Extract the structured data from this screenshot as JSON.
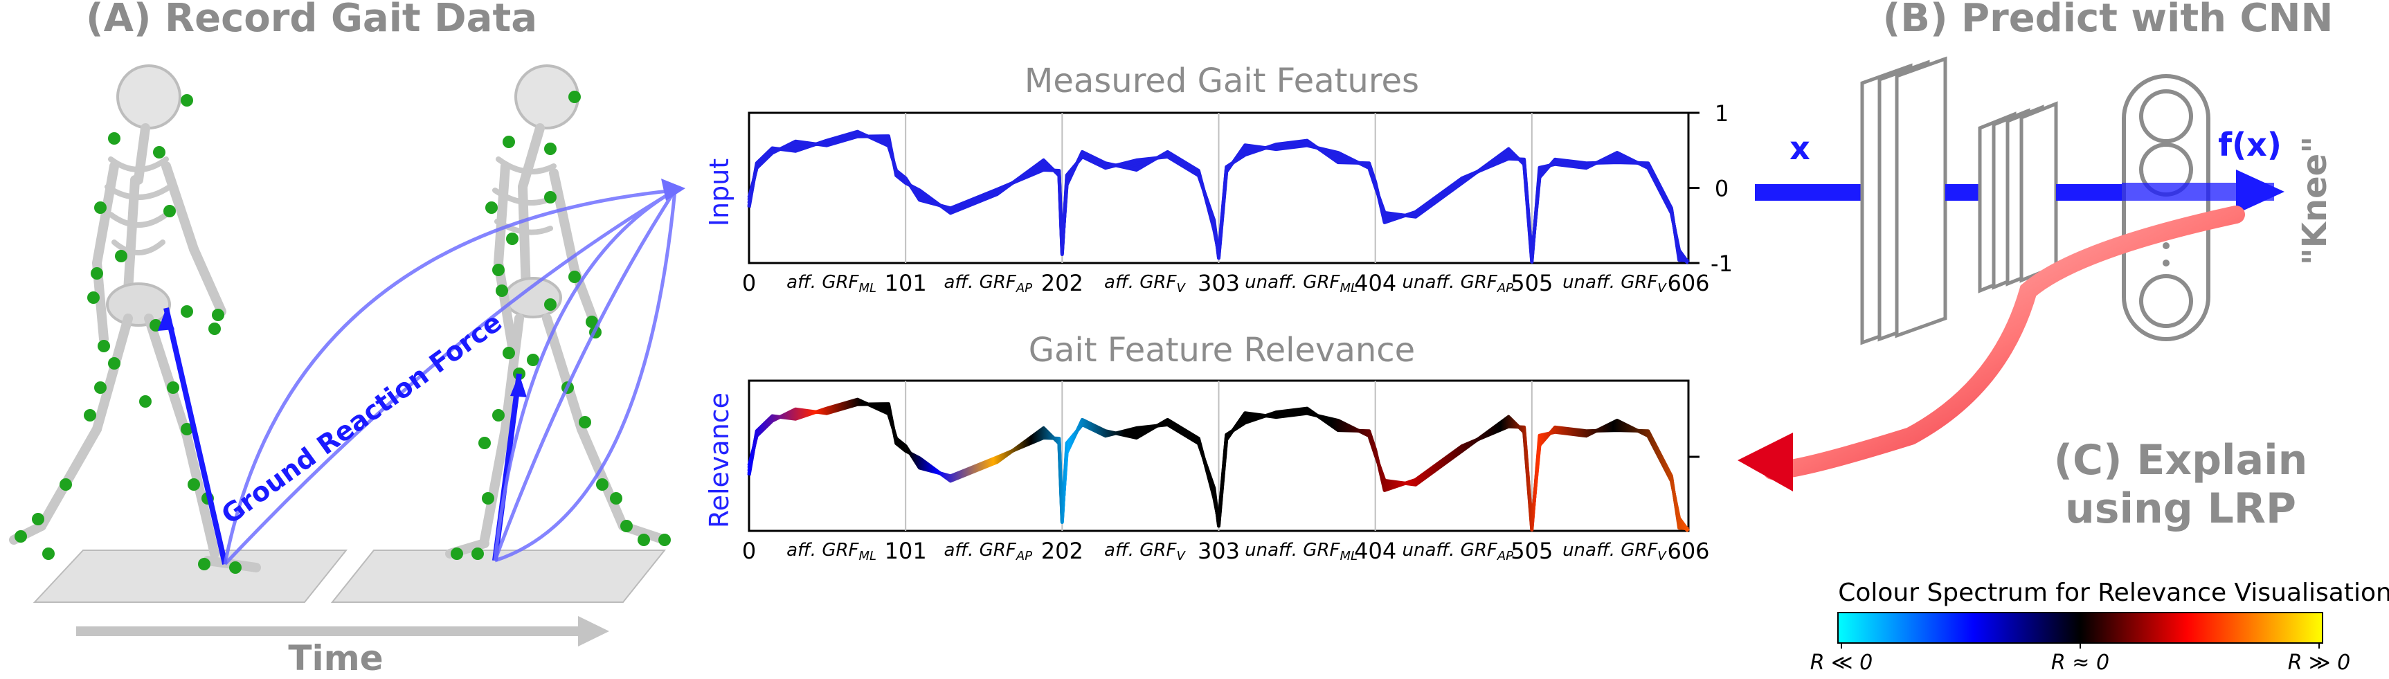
{
  "panels": {
    "a_title": "(A) Record Gait Data",
    "b_title": "(B) Predict with CNN",
    "c_title_line1": "(C) Explain",
    "c_title_line2": "using LRP",
    "time_label": "Time",
    "grf_label": "Ground Reaction Force"
  },
  "cnn": {
    "input_label": "x",
    "output_label": "f(x)",
    "prediction_label": "\"Knee\""
  },
  "plots": {
    "top_title": "Measured Gait Features",
    "top_ylabel": "Input",
    "bottom_title": "Gait Feature Relevance",
    "bottom_ylabel": "Relevance",
    "x_ticks": [
      "0",
      "101",
      "202",
      "303",
      "404",
      "505",
      "606"
    ],
    "y_ticks_top": [
      "1",
      "0",
      "-1"
    ],
    "segments": [
      {
        "main": "aff. GRF",
        "sub": "ML"
      },
      {
        "main": "aff. GRF",
        "sub": "AP"
      },
      {
        "main": "aff. GRF",
        "sub": "V"
      },
      {
        "main": "unaff. GRF",
        "sub": "ML"
      },
      {
        "main": "unaff. GRF",
        "sub": "AP"
      },
      {
        "main": "unaff. GRF",
        "sub": "V"
      }
    ],
    "line_color": "#1f1fe6"
  },
  "colorbar": {
    "title": "Colour Spectrum for Relevance Visualisation",
    "left_label": "R ≪ 0",
    "mid_label": "R ≈ 0",
    "right_label": "R ≫ 0",
    "stops": [
      "#00ffff",
      "#0000ff",
      "#000000",
      "#ff0000",
      "#ffff00"
    ]
  },
  "chart_data": [
    {
      "type": "line",
      "title": "Measured Gait Features",
      "ylabel": "Input",
      "xlim": [
        0,
        606
      ],
      "ylim": [
        -1,
        1
      ],
      "x_ticks": [
        0,
        101,
        202,
        303,
        404,
        505,
        606
      ],
      "y_ticks": [
        1,
        0,
        -1
      ],
      "series": [
        {
          "x": [
            0,
            5,
            15,
            30,
            50,
            70,
            90,
            95,
            101,
            110,
            130,
            160,
            190,
            200,
            202,
            205,
            215,
            230,
            250,
            270,
            290,
            300,
            303,
            308,
            320,
            340,
            360,
            380,
            400,
            404,
            410,
            430,
            460,
            490,
            500,
            505,
            510,
            520,
            540,
            560,
            580,
            595,
            600,
            606
          ],
          "y": [
            -0.2,
            0.3,
            0.5,
            0.55,
            0.6,
            0.72,
            0.62,
            0.2,
            0.1,
            -0.1,
            -0.3,
            -0.05,
            0.3,
            0.2,
            -0.85,
            0.1,
            0.45,
            0.3,
            0.3,
            0.45,
            0.2,
            -0.5,
            -0.9,
            0.25,
            0.5,
            0.55,
            0.6,
            0.4,
            0.3,
            0.05,
            -0.4,
            -0.35,
            0.1,
            0.45,
            0.35,
            -0.95,
            0.2,
            0.35,
            0.3,
            0.4,
            0.3,
            -0.3,
            -0.9,
            -1.0
          ]
        }
      ]
    },
    {
      "type": "line",
      "title": "Gait Feature Relevance",
      "ylabel": "Relevance",
      "xlim": [
        0,
        606
      ],
      "ylim": [
        -1,
        1
      ],
      "x_ticks": [
        0,
        101,
        202,
        303,
        404,
        505,
        606
      ],
      "series": [
        {
          "x": [
            0,
            5,
            15,
            30,
            50,
            70,
            90,
            95,
            101,
            110,
            130,
            160,
            190,
            200,
            202,
            205,
            215,
            230,
            250,
            270,
            290,
            300,
            303,
            308,
            320,
            340,
            360,
            380,
            400,
            404,
            410,
            430,
            460,
            490,
            500,
            505,
            510,
            520,
            540,
            560,
            580,
            595,
            600,
            606
          ],
          "y": [
            -0.2,
            0.3,
            0.5,
            0.55,
            0.6,
            0.72,
            0.62,
            0.2,
            0.1,
            -0.1,
            -0.3,
            -0.05,
            0.3,
            0.2,
            -0.85,
            0.1,
            0.45,
            0.3,
            0.3,
            0.45,
            0.2,
            -0.5,
            -0.9,
            0.25,
            0.5,
            0.55,
            0.6,
            0.4,
            0.3,
            0.05,
            -0.4,
            -0.35,
            0.1,
            0.45,
            0.35,
            -0.95,
            0.2,
            0.35,
            0.3,
            0.4,
            0.3,
            -0.3,
            -0.9,
            -1.0
          ]
        }
      ]
    }
  ]
}
